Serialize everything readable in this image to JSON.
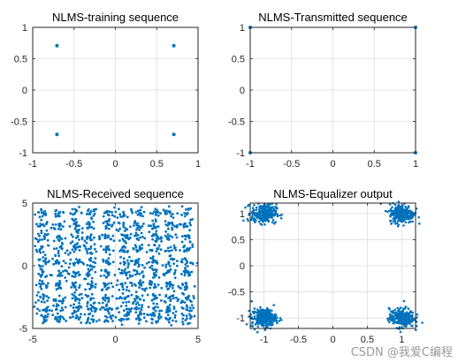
{
  "figure": {
    "watermark": "CSDN @我爱C编程",
    "axis_color": "#262626",
    "grid_color": "#dfdfdf",
    "marker_color": "#0072bd"
  },
  "chart_data": [
    {
      "type": "scatter",
      "title": "NLMS-training sequence",
      "xlim": [
        -1,
        1
      ],
      "ylim": [
        -1,
        1
      ],
      "xticks": [
        -1,
        -0.5,
        0,
        0.5,
        1
      ],
      "yticks": [
        -1,
        -0.5,
        0,
        0.5,
        1
      ],
      "xtick_labels": [
        "-1",
        "-0.5",
        "0",
        "0.5",
        "1"
      ],
      "ytick_labels": [
        "-1",
        "-0.5",
        "0",
        "0.5",
        "1"
      ],
      "grid": true,
      "points": [
        [
          -0.707,
          0.707
        ],
        [
          0.707,
          0.707
        ],
        [
          -0.707,
          -0.707
        ],
        [
          0.707,
          -0.707
        ]
      ]
    },
    {
      "type": "scatter",
      "title": "NLMS-Transmitted sequence",
      "xlim": [
        -1,
        1
      ],
      "ylim": [
        -1,
        1
      ],
      "xticks": [
        -1,
        -0.5,
        0,
        0.5,
        1
      ],
      "yticks": [
        -1,
        -0.5,
        0,
        0.5,
        1
      ],
      "xtick_labels": [
        "-1",
        "-0.5",
        "0",
        "0.5",
        "1"
      ],
      "ytick_labels": [
        "-1",
        "-0.5",
        "0",
        "0.5",
        "1"
      ],
      "grid": true,
      "points": [
        [
          -1,
          1
        ],
        [
          1,
          1
        ],
        [
          -1,
          -1
        ],
        [
          1,
          -1
        ]
      ]
    },
    {
      "type": "scatter",
      "title": "NLMS-Received sequence",
      "xlim": [
        -5,
        5
      ],
      "ylim": [
        -5,
        5
      ],
      "xticks": [
        -5,
        0,
        5
      ],
      "yticks": [
        -5,
        0,
        5
      ],
      "xtick_labels": [
        "-5",
        "0",
        "5"
      ],
      "ytick_labels": [
        "-5",
        "0",
        "5"
      ],
      "grid": true,
      "cluster_x": [
        -4.4,
        -3.4,
        -2.4,
        -1.5,
        -0.5,
        0.5,
        1.4,
        2.4,
        3.3,
        4.3
      ],
      "cluster_y": [
        4.2,
        3.2,
        2.2,
        1.3,
        0.3,
        -0.6,
        -1.6,
        -2.6,
        -3.5,
        -4.2
      ],
      "spread": 0.22
    },
    {
      "type": "scatter",
      "title": "NLMS-Equalizer output",
      "xlim": [
        -1.2,
        1.2
      ],
      "ylim": [
        -1.2,
        1.2
      ],
      "xticks": [
        -1,
        -0.5,
        0,
        0.5,
        1
      ],
      "yticks": [
        -1,
        -0.5,
        0,
        0.5,
        1
      ],
      "xtick_labels": [
        "-1",
        "-0.5",
        "0",
        "0.5",
        "1"
      ],
      "ytick_labels": [
        "-1",
        "-0.5",
        "0",
        "0.5",
        "1"
      ],
      "grid": true,
      "cluster_centers": [
        [
          -1,
          1
        ],
        [
          1,
          1
        ],
        [
          -1,
          -1
        ],
        [
          1,
          -1
        ]
      ],
      "spread": 0.09
    }
  ]
}
